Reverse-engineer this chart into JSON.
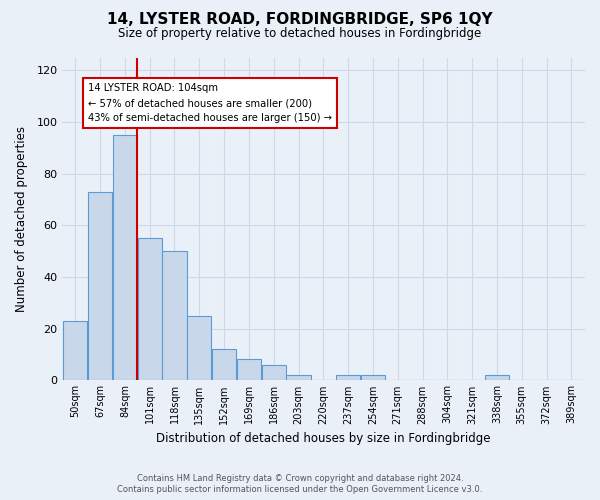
{
  "title": "14, LYSTER ROAD, FORDINGBRIDGE, SP6 1QY",
  "subtitle": "Size of property relative to detached houses in Fordingbridge",
  "xlabel": "Distribution of detached houses by size in Fordingbridge",
  "ylabel": "Number of detached properties",
  "footer_line1": "Contains HM Land Registry data © Crown copyright and database right 2024.",
  "footer_line2": "Contains public sector information licensed under the Open Government Licence v3.0.",
  "bin_labels": [
    "50sqm",
    "67sqm",
    "84sqm",
    "101sqm",
    "118sqm",
    "135sqm",
    "152sqm",
    "169sqm",
    "186sqm",
    "203sqm",
    "220sqm",
    "237sqm",
    "254sqm",
    "271sqm",
    "288sqm",
    "304sqm",
    "321sqm",
    "338sqm",
    "355sqm",
    "372sqm",
    "389sqm"
  ],
  "bar_values": [
    23,
    73,
    95,
    55,
    50,
    25,
    12,
    8,
    6,
    2,
    0,
    2,
    2,
    0,
    0,
    0,
    0,
    2,
    0,
    0,
    0
  ],
  "bar_color": "#c8d8ea",
  "bar_edge_color": "#5b9bd5",
  "vline_x_index": 2,
  "vline_color": "#cc0000",
  "annotation_title": "14 LYSTER ROAD: 104sqm",
  "annotation_line1": "← 57% of detached houses are smaller (200)",
  "annotation_line2": "43% of semi-detached houses are larger (150) →",
  "annotation_box_color": "#ffffff",
  "annotation_box_edge": "#cc0000",
  "ylim": [
    0,
    125
  ],
  "yticks": [
    0,
    20,
    40,
    60,
    80,
    100,
    120
  ],
  "grid_color": "#d0d8e8",
  "background_color": "#eaf0f8"
}
